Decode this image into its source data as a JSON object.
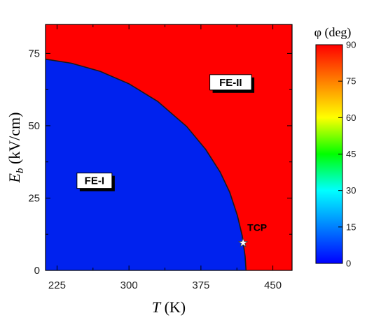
{
  "chart_data": {
    "type": "heatmap",
    "title": "",
    "x_axis": {
      "label_italic": "T",
      "label_unit": " (K)",
      "range": [
        213,
        470
      ],
      "major_ticks": [
        225,
        300,
        375,
        450
      ],
      "minor_ticks": [
        262.5,
        337.5,
        412.5
      ]
    },
    "y_axis": {
      "label_italic": "E",
      "label_sub": "b",
      "label_unit": " (kV/cm)",
      "range": [
        0,
        85
      ],
      "major_ticks": [
        0,
        25,
        50,
        75
      ],
      "minor_ticks": [
        12.5,
        37.5,
        62.5
      ]
    },
    "colorbar": {
      "title": "φ (deg)",
      "range": [
        0,
        90
      ],
      "ticks": [
        0,
        15,
        30,
        45,
        60,
        75,
        90
      ],
      "colors": [
        "#0000ff",
        "#0080ff",
        "#00ffff",
        "#00ff00",
        "#ffff00",
        "#ff8000",
        "#ff0000"
      ]
    },
    "regions": [
      {
        "name": "FE-I",
        "phi_deg": 0,
        "label_at": [
          264,
          31
        ],
        "color": "#0022ee"
      },
      {
        "name": "FE-II",
        "phi_deg": 90,
        "label_at": [
          406,
          65
        ],
        "color": "#ff0000"
      }
    ],
    "boundary": {
      "T": [
        213,
        240,
        270,
        300,
        330,
        360,
        380,
        395,
        405,
        413,
        418,
        421,
        422
      ],
      "Eb": [
        73.0,
        71.6,
        68.8,
        64.5,
        58.4,
        49.8,
        41.8,
        34.0,
        27.0,
        19.0,
        12.0,
        5.0,
        0
      ]
    },
    "tcp": {
      "label": "TCP",
      "T": 419,
      "Eb": 9.5
    }
  }
}
